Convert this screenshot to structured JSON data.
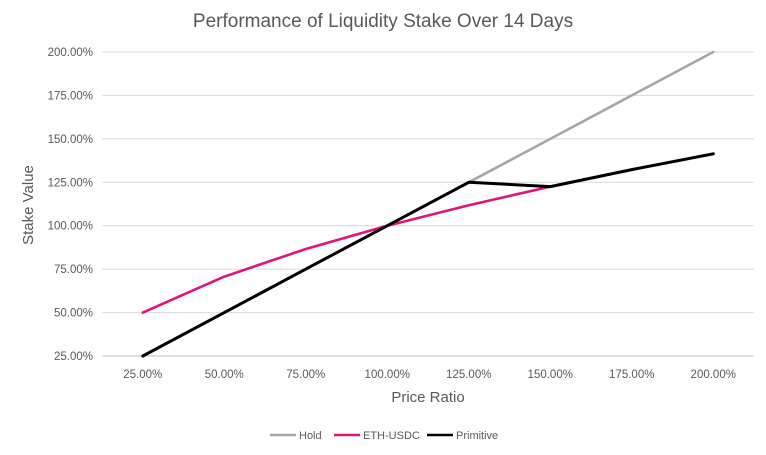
{
  "chart_data": {
    "type": "line",
    "title": "Performance of Liquidity Stake Over 14 Days",
    "xlabel": "Price Ratio",
    "ylabel": "Stake Value",
    "categories": [
      "25.00%",
      "50.00%",
      "75.00%",
      "100.00%",
      "125.00%",
      "150.00%",
      "175.00%",
      "200.00%"
    ],
    "y_ticks": [
      "25.00%",
      "50.00%",
      "75.00%",
      "100.00%",
      "125.00%",
      "150.00%",
      "175.00%",
      "200.00%"
    ],
    "ylim": [
      25,
      200
    ],
    "grid": true,
    "legend": "bottom",
    "series": [
      {
        "name": "Hold",
        "color": "#a6a6a6",
        "values": [
          25,
          50,
          75,
          100,
          125,
          150,
          175,
          200
        ]
      },
      {
        "name": "ETH-USDC",
        "color": "#e0157a",
        "values": [
          50,
          70.7,
          86.6,
          100,
          111.8,
          122.5,
          132.3,
          141.4
        ]
      },
      {
        "name": "Primitive",
        "color": "#000000",
        "values": [
          25,
          50,
          75,
          100,
          125,
          122.5,
          132.3,
          141.4
        ]
      }
    ]
  }
}
